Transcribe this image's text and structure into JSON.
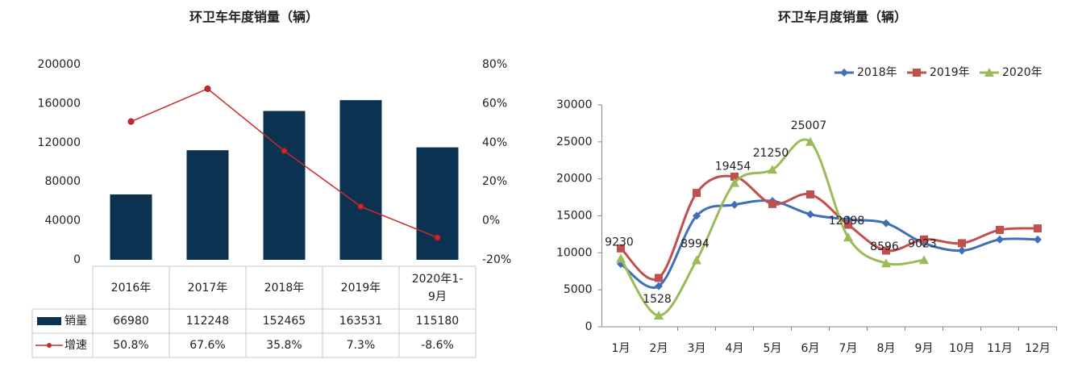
{
  "chart_data": [
    {
      "type": "bar",
      "title": "环卫车年度销量（辆）",
      "categories": [
        "2016年",
        "2017年",
        "2018年",
        "2019年",
        "2020年1-9月"
      ],
      "series": [
        {
          "name": "销量",
          "type": "bar",
          "color": "#0b3251",
          "values": [
            66980,
            112248,
            152465,
            163531,
            115180
          ]
        },
        {
          "name": "增速",
          "type": "line",
          "axis": "y2",
          "color": "#cc2a2a",
          "values": [
            50.8,
            67.6,
            35.8,
            7.3,
            -8.6
          ],
          "value_labels": [
            "50.8%",
            "67.6%",
            "35.8%",
            "7.3%",
            "-8.6%"
          ]
        }
      ],
      "ylim": [
        0,
        200000
      ],
      "yticks": [
        0,
        40000,
        80000,
        120000,
        160000,
        200000
      ],
      "y2lim": [
        -20,
        80
      ],
      "y2ticks": [
        {
          "value": -20,
          "label": "-20%"
        },
        {
          "value": 0,
          "label": "0%"
        },
        {
          "value": 20,
          "label": "20%"
        },
        {
          "value": 40,
          "label": "40%"
        },
        {
          "value": 60,
          "label": "60%"
        },
        {
          "value": 80,
          "label": "80%"
        }
      ],
      "data_table": true
    },
    {
      "type": "line",
      "title": "环卫车月度销量（辆）",
      "categories": [
        "1月",
        "2月",
        "3月",
        "4月",
        "5月",
        "6月",
        "7月",
        "8月",
        "9月",
        "10月",
        "11月",
        "12月"
      ],
      "series": [
        {
          "name": "2018年",
          "color": "#3e6fb8",
          "marker": "diamond",
          "values": [
            8500,
            5500,
            15000,
            16500,
            17000,
            15200,
            14500,
            14000,
            11300,
            10300,
            11800,
            11800
          ]
        },
        {
          "name": "2019年",
          "color": "#c0504d",
          "marker": "square",
          "values": [
            10600,
            6600,
            18100,
            20300,
            16600,
            17900,
            13800,
            10300,
            11800,
            11300,
            13100,
            13300
          ]
        },
        {
          "name": "2020年",
          "color": "#9bbb59",
          "marker": "triangle",
          "show_labels": true,
          "values": [
            9230,
            1528,
            8994,
            19454,
            21250,
            25007,
            12098,
            8596,
            9023,
            null,
            null,
            null
          ]
        }
      ],
      "ylim": [
        0,
        30000
      ],
      "yticks": [
        0,
        5000,
        10000,
        15000,
        20000,
        25000,
        30000
      ],
      "legend": "top",
      "smooth": true
    }
  ]
}
